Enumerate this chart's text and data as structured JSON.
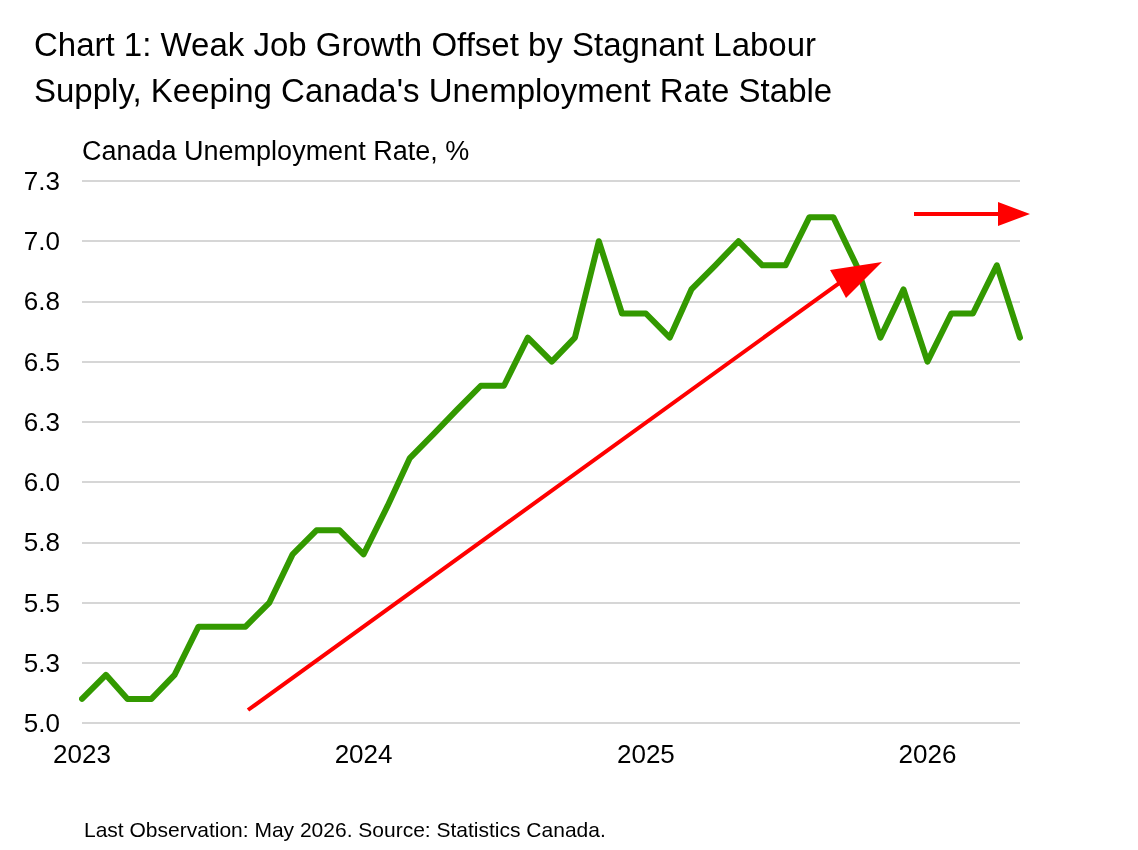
{
  "chart_data": {
    "type": "line",
    "title": "Chart 1: Weak Job Growth Offset by Stagnant Labour\nSupply, Keeping Canada's Unemployment Rate Stable",
    "ylabel": "Canada Unemployment Rate, %",
    "annotations": [
      "Last Observation: May 2026. Source: Statistics Canada."
    ],
    "x": [
      "2023-01",
      "2023-02",
      "2023-03",
      "2023-04",
      "2023-05",
      "2023-06",
      "2023-07",
      "2023-08",
      "2023-09",
      "2023-10",
      "2023-11",
      "2023-12",
      "2024-01",
      "2024-02",
      "2024-03",
      "2024-04",
      "2024-05",
      "2024-06",
      "2024-07",
      "2024-08",
      "2024-09",
      "2024-10",
      "2024-11",
      "2024-12",
      "2025-01",
      "2025-02",
      "2025-03",
      "2025-04",
      "2025-05",
      "2025-06",
      "2025-07",
      "2025-08",
      "2025-09",
      "2025-10",
      "2025-11",
      "2025-12",
      "2026-01",
      "2026-02",
      "2026-03",
      "2026-04",
      "2026-05"
    ],
    "series": [
      {
        "color": "#339900",
        "values": [
          5.1,
          5.2,
          5.1,
          5.1,
          5.2,
          5.4,
          5.4,
          5.4,
          5.5,
          5.7,
          5.8,
          5.8,
          5.7,
          5.9,
          6.1,
          6.2,
          6.3,
          6.4,
          6.4,
          6.6,
          6.5,
          6.6,
          7.0,
          6.7,
          6.7,
          6.6,
          6.8,
          6.9,
          7.0,
          6.9,
          6.9,
          7.1,
          7.1,
          6.9,
          6.6,
          6.8,
          6.5,
          6.7,
          6.7,
          6.9,
          6.6
        ]
      }
    ],
    "xlim": [
      "2023-01",
      "2026-05"
    ],
    "xticks": [
      {
        "value": "2023-01",
        "label": "2023"
      },
      {
        "value": "2024-01",
        "label": "2024"
      },
      {
        "value": "2025-01",
        "label": "2025"
      },
      {
        "value": "2026-01",
        "label": "2026"
      }
    ],
    "ylim": [
      5.0,
      7.25
    ],
    "yticks": [
      {
        "value": 5,
        "label": "5.0"
      },
      {
        "value": 5.25,
        "label": "5.3"
      },
      5.5,
      {
        "value": 5.75,
        "label": "5.8"
      },
      {
        "value": 6,
        "label": "6.0"
      },
      {
        "value": 6.25,
        "label": "6.3"
      },
      6.5,
      {
        "value": 6.75,
        "label": "6.8"
      },
      {
        "value": 7,
        "label": "7.0"
      },
      {
        "value": 7.25,
        "label": "7.3"
      }
    ],
    "grid": "y",
    "marker": "none",
    "line_style": "solid"
  }
}
